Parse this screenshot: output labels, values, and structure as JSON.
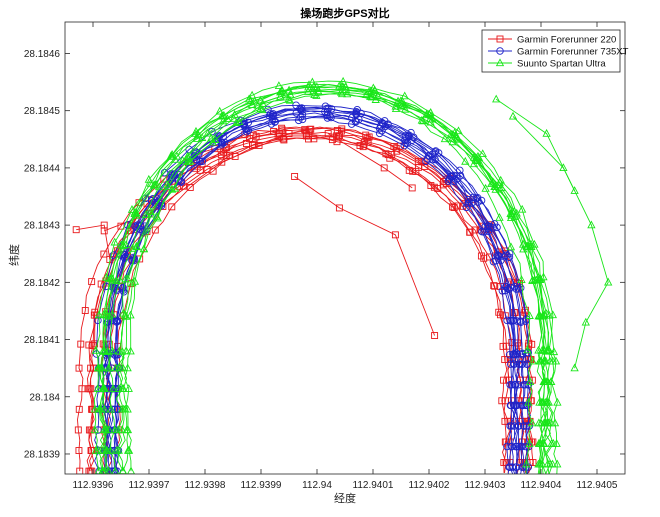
{
  "chart_data": {
    "type": "line",
    "title": "操场跑步GPS对比",
    "xlabel": "经度",
    "ylabel": "纬度",
    "xlim": [
      112.93955,
      112.94055
    ],
    "ylim": [
      28.183865,
      28.184655
    ],
    "xticks": [
      112.9396,
      112.9397,
      112.9398,
      112.9399,
      112.94,
      112.9401,
      112.9402,
      112.9403,
      112.9404,
      112.9405
    ],
    "xtick_labels": [
      "112.9396",
      "112.9397",
      "112.9398",
      "112.9399",
      "112.94",
      "112.9401",
      "112.9402",
      "112.9403",
      "112.9404",
      "112.9405"
    ],
    "yticks": [
      28.1839,
      28.184,
      28.1841,
      28.1842,
      28.1843,
      28.1844,
      28.1845,
      28.1846
    ],
    "ytick_labels": [
      "28.1839",
      "28.184",
      "28.1841",
      "28.1842",
      "28.1843",
      "28.1844",
      "28.1845",
      "28.1846"
    ],
    "grid": false,
    "legend_position": "top-right",
    "series": [
      {
        "name": "Garmin Forerunner 220",
        "color": "#e8191c",
        "marker": "square",
        "track": {
          "cx": 112.939985,
          "cy": 28.184065,
          "rx": 0.000375,
          "ry": 0.000395,
          "laps": 8,
          "spread_x": 2.8e-05,
          "spread_y": 1.2e-05,
          "y_bottom": 28.18387
        },
        "extra_segments": [
          {
            "x": [
              112.93998,
              112.93995,
              112.93983,
              112.9397,
              112.93962
            ],
            "y": [
              28.184465,
              28.18446,
              28.18441,
              28.18432,
              28.18429
            ]
          },
          {
            "x": [
              112.93996,
              112.94004,
              112.94014,
              112.94021
            ],
            "y": [
              28.184385,
              28.18433,
              28.184283,
              28.184107
            ]
          },
          {
            "x": [
              112.94002,
              112.94012,
              112.94017
            ],
            "y": [
              28.18446,
              28.1844,
              28.184365
            ]
          },
          {
            "x": [
              112.93957,
              112.93962,
              112.93963
            ],
            "y": [
              28.184292,
              28.1843,
              28.18424
            ]
          }
        ]
      },
      {
        "name": "Garmin Forerunner 735XT",
        "color": "#1f24c9",
        "marker": "circle",
        "track": {
          "cx": 112.939995,
          "cy": 28.184075,
          "rx": 0.000365,
          "ry": 0.000425,
          "laps": 10,
          "spread_x": 2.2e-05,
          "spread_y": 1e-05,
          "y_bottom": 28.18387
        },
        "extra_segments": []
      },
      {
        "name": "Suunto Spartan Ultra",
        "color": "#19e619",
        "marker": "triangle",
        "track": {
          "cx": 112.94002,
          "cy": 28.18408,
          "rx": 0.000385,
          "ry": 0.00046,
          "laps": 10,
          "spread_x": 3.5e-05,
          "spread_y": 9e-06,
          "y_bottom": 28.18387
        },
        "extra_segments": [
          {
            "x": [
              112.94035,
              112.94044,
              112.94049,
              112.94052,
              112.94048,
              112.94046
            ],
            "y": [
              28.18449,
              28.1844,
              28.1843,
              28.1842,
              28.18413,
              28.18405
            ]
          },
          {
            "x": [
              112.94032,
              112.94041,
              112.94046
            ],
            "y": [
              28.18452,
              28.18446,
              28.18436
            ]
          }
        ]
      }
    ]
  }
}
